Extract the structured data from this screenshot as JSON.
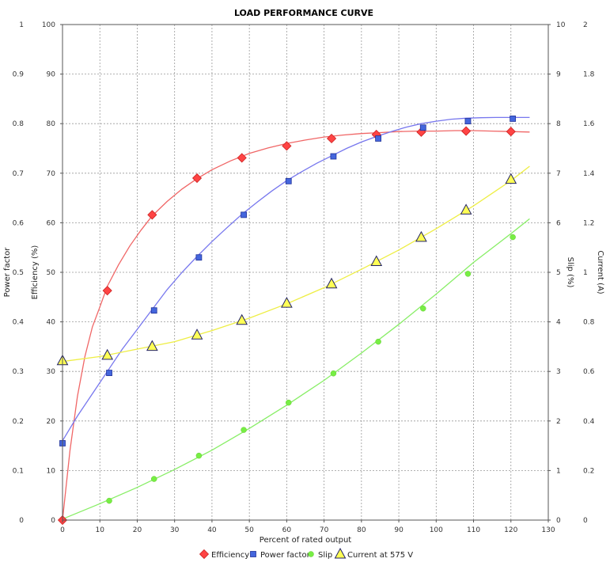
{
  "chart_data": {
    "type": "line",
    "title": "LOAD PERFORMANCE CURVE",
    "xlabel": "Percent of rated output",
    "xlim": [
      0,
      130
    ],
    "x_ticks": [
      0,
      10,
      20,
      30,
      40,
      50,
      60,
      70,
      80,
      90,
      100,
      110,
      120,
      130
    ],
    "grid": true,
    "legend_position": "bottom",
    "axes": {
      "power_factor": {
        "label": "Power factor",
        "side": "left",
        "range": [
          0,
          1
        ],
        "ticks": [
          "0",
          "0.1",
          "0.2",
          "0.3",
          "0.4",
          "0.5",
          "0.6",
          "0.7",
          "0.8",
          "0.9",
          "1"
        ]
      },
      "efficiency": {
        "label": "Efficiency (%)",
        "side": "left",
        "range": [
          0,
          100
        ],
        "ticks": [
          "0",
          "10",
          "20",
          "30",
          "40",
          "50",
          "60",
          "70",
          "80",
          "90",
          "100"
        ]
      },
      "slip": {
        "label": "Slip (%)",
        "side": "right",
        "range": [
          0,
          10
        ],
        "ticks": [
          "0",
          "1",
          "2",
          "3",
          "4",
          "5",
          "6",
          "7",
          "8",
          "9",
          "10"
        ]
      },
      "current": {
        "label": "Current (A)",
        "side": "right",
        "range": [
          0,
          2
        ],
        "ticks": [
          "0",
          "0.2",
          "0.4",
          "0.6",
          "0.8",
          "1",
          "1.2",
          "1.4",
          "1.6",
          "1.8",
          "2"
        ]
      }
    },
    "series": [
      {
        "name": "Efficiency",
        "axis": "efficiency",
        "color": "#ff4444",
        "line_color": "#f06666",
        "marker": "diamond",
        "points": [
          [
            0,
            0
          ],
          [
            12,
            46.3
          ],
          [
            24,
            61.6
          ],
          [
            36,
            69
          ],
          [
            48,
            73.1
          ],
          [
            60,
            75.5
          ],
          [
            72,
            77
          ],
          [
            84,
            77.8
          ],
          [
            96,
            78.3
          ],
          [
            108,
            78.5
          ],
          [
            120,
            78.4
          ]
        ],
        "curve": [
          [
            0,
            0
          ],
          [
            2,
            14
          ],
          [
            4,
            25
          ],
          [
            6,
            33
          ],
          [
            8,
            39
          ],
          [
            10,
            43
          ],
          [
            12,
            47.2
          ],
          [
            15,
            51.5
          ],
          [
            18,
            55.3
          ],
          [
            21,
            58.5
          ],
          [
            24,
            61.4
          ],
          [
            28,
            64.3
          ],
          [
            32,
            66.8
          ],
          [
            36,
            68.9
          ],
          [
            40,
            70.7
          ],
          [
            45,
            72.5
          ],
          [
            50,
            74
          ],
          [
            55,
            75.1
          ],
          [
            60,
            76
          ],
          [
            65,
            76.7
          ],
          [
            70,
            77.3
          ],
          [
            75,
            77.7
          ],
          [
            80,
            78
          ],
          [
            85,
            78.2
          ],
          [
            90,
            78.4
          ],
          [
            95,
            78.5
          ],
          [
            100,
            78.5
          ],
          [
            105,
            78.6
          ],
          [
            110,
            78.6
          ],
          [
            115,
            78.5
          ],
          [
            120,
            78.4
          ],
          [
            125,
            78.3
          ]
        ]
      },
      {
        "name": "Power factor",
        "axis": "power_factor",
        "color": "#4466dd",
        "line_color": "#7777ee",
        "marker": "square",
        "points": [
          [
            0,
            0.155
          ],
          [
            12.5,
            0.297
          ],
          [
            24.5,
            0.423
          ],
          [
            36.5,
            0.53
          ],
          [
            48.5,
            0.616
          ],
          [
            60.5,
            0.684
          ],
          [
            72.5,
            0.734
          ],
          [
            84.5,
            0.77
          ],
          [
            96.5,
            0.792
          ],
          [
            108.5,
            0.805
          ],
          [
            120.5,
            0.81
          ]
        ],
        "curve": [
          [
            0,
            0.16
          ],
          [
            4,
            0.21
          ],
          [
            8,
            0.255
          ],
          [
            12,
            0.3
          ],
          [
            16,
            0.345
          ],
          [
            20,
            0.385
          ],
          [
            24,
            0.425
          ],
          [
            28,
            0.465
          ],
          [
            32,
            0.5
          ],
          [
            36,
            0.532
          ],
          [
            40,
            0.562
          ],
          [
            44,
            0.59
          ],
          [
            48,
            0.617
          ],
          [
            52,
            0.641
          ],
          [
            56,
            0.664
          ],
          [
            60,
            0.685
          ],
          [
            64,
            0.703
          ],
          [
            68,
            0.72
          ],
          [
            72,
            0.735
          ],
          [
            76,
            0.75
          ],
          [
            80,
            0.763
          ],
          [
            84,
            0.774
          ],
          [
            88,
            0.784
          ],
          [
            92,
            0.793
          ],
          [
            96,
            0.8
          ],
          [
            100,
            0.805
          ],
          [
            104,
            0.809
          ],
          [
            108,
            0.811
          ],
          [
            112,
            0.812
          ],
          [
            116,
            0.8125
          ],
          [
            120,
            0.8125
          ],
          [
            125,
            0.8125
          ]
        ]
      },
      {
        "name": "Slip",
        "axis": "slip",
        "color": "#77ee44",
        "line_color": "#88ee66",
        "marker": "circle",
        "points": [
          [
            12.5,
            0.39
          ],
          [
            24.5,
            0.83
          ],
          [
            36.5,
            1.3
          ],
          [
            48.5,
            1.82
          ],
          [
            60.5,
            2.37
          ],
          [
            72.5,
            2.96
          ],
          [
            84.5,
            3.6
          ],
          [
            96.5,
            4.27
          ],
          [
            108.5,
            4.97
          ],
          [
            120.5,
            5.71
          ]
        ],
        "curve": [
          [
            0,
            0.02
          ],
          [
            10,
            0.33
          ],
          [
            20,
            0.66
          ],
          [
            30,
            1.02
          ],
          [
            40,
            1.41
          ],
          [
            50,
            1.85
          ],
          [
            60,
            2.32
          ],
          [
            70,
            2.82
          ],
          [
            80,
            3.37
          ],
          [
            90,
            3.95
          ],
          [
            100,
            4.56
          ],
          [
            110,
            5.2
          ],
          [
            120,
            5.78
          ],
          [
            125,
            6.08
          ]
        ]
      },
      {
        "name": "Current at 575 V",
        "axis": "current",
        "color": "#ffff55",
        "line_color": "#eeee44",
        "marker": "triangle",
        "points": [
          [
            0,
            0.643
          ],
          [
            12,
            0.665
          ],
          [
            24,
            0.701
          ],
          [
            36,
            0.747
          ],
          [
            48,
            0.806
          ],
          [
            60,
            0.875
          ],
          [
            72,
            0.953
          ],
          [
            84,
            1.043
          ],
          [
            96,
            1.141
          ],
          [
            108,
            1.251
          ],
          [
            120,
            1.375
          ]
        ],
        "curve": [
          [
            0,
            0.64
          ],
          [
            10,
            0.66
          ],
          [
            20,
            0.69
          ],
          [
            30,
            0.72
          ],
          [
            40,
            0.765
          ],
          [
            50,
            0.815
          ],
          [
            60,
            0.873
          ],
          [
            70,
            0.938
          ],
          [
            80,
            1.012
          ],
          [
            90,
            1.09
          ],
          [
            100,
            1.176
          ],
          [
            110,
            1.268
          ],
          [
            120,
            1.37
          ],
          [
            125,
            1.428
          ]
        ]
      }
    ]
  }
}
